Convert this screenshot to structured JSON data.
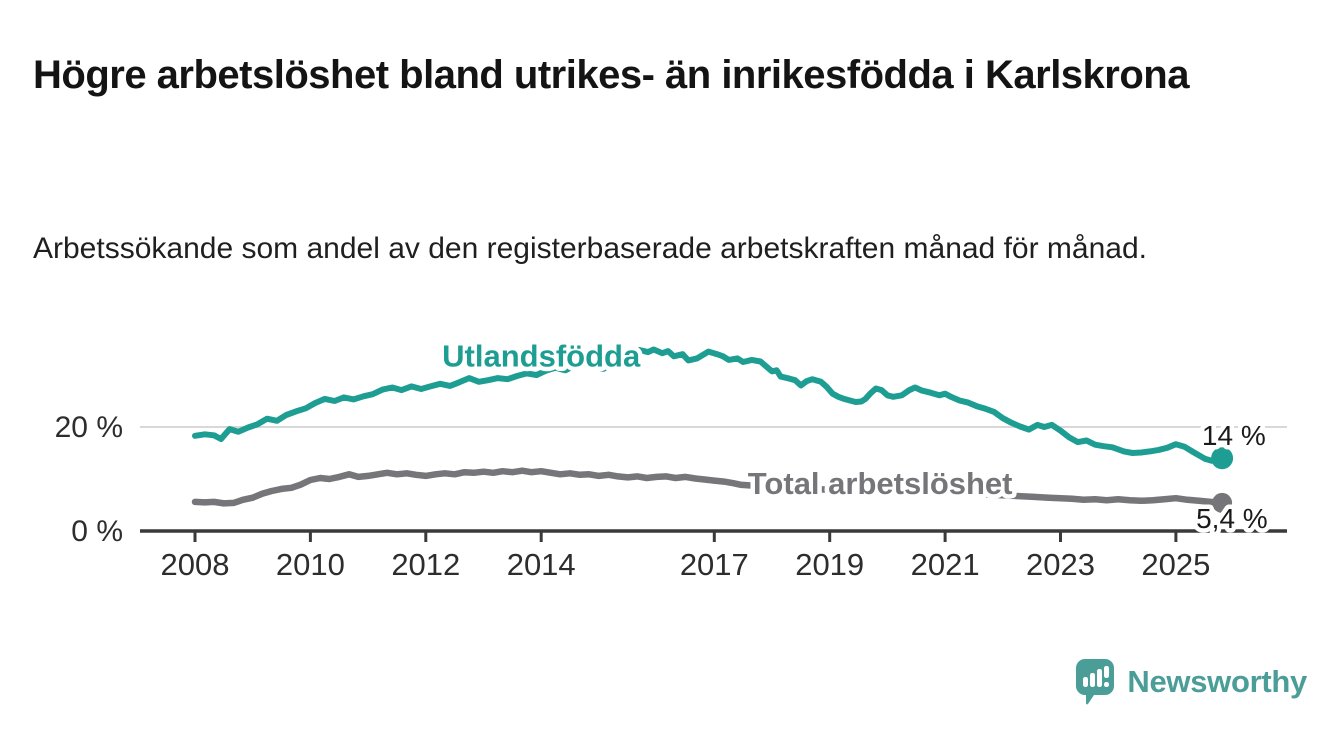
{
  "header": {
    "title": "Högre arbetslöshet bland utrikes- än inrikesfödda i Karlskrona",
    "subtitle": "Arbetssökande som andel av den registerbaserade arbetskraften månad för månad."
  },
  "chart_data": {
    "type": "line",
    "x_axis": {
      "ticks": [
        2008,
        2010,
        2012,
        2014,
        2017,
        2019,
        2021,
        2023,
        2025
      ],
      "range": [
        2007.1,
        2026.9
      ]
    },
    "y_axis": {
      "ticks": [
        {
          "value": 0,
          "label": "0 %"
        },
        {
          "value": 20,
          "label": "20 %"
        }
      ],
      "gridlines": [
        20
      ],
      "range": [
        0,
        38
      ]
    },
    "style": {
      "grid_color": "#d8d8d8",
      "axis_color": "#3a3a3c"
    },
    "series": [
      {
        "name": "Utlandsfödda",
        "color": "#1e9e93",
        "width": 6,
        "dot_r": 11,
        "end_label": "14 %",
        "label_anchor": "middle",
        "label_pos": [
          2014.0,
          31.6
        ],
        "value_label_pos": [
          2025.45,
          16.5
        ],
        "points": [
          [
            2008.0,
            18.3
          ],
          [
            2008.17,
            18.6
          ],
          [
            2008.33,
            18.4
          ],
          [
            2008.45,
            17.7
          ],
          [
            2008.6,
            19.6
          ],
          [
            2008.75,
            19.1
          ],
          [
            2008.92,
            19.9
          ],
          [
            2009.08,
            20.5
          ],
          [
            2009.25,
            21.6
          ],
          [
            2009.42,
            21.2
          ],
          [
            2009.58,
            22.3
          ],
          [
            2009.75,
            23.0
          ],
          [
            2009.92,
            23.6
          ],
          [
            2010.08,
            24.6
          ],
          [
            2010.25,
            25.4
          ],
          [
            2010.42,
            25.0
          ],
          [
            2010.58,
            25.7
          ],
          [
            2010.75,
            25.3
          ],
          [
            2010.92,
            25.9
          ],
          [
            2011.08,
            26.3
          ],
          [
            2011.25,
            27.2
          ],
          [
            2011.42,
            27.6
          ],
          [
            2011.58,
            27.1
          ],
          [
            2011.75,
            27.8
          ],
          [
            2011.92,
            27.3
          ],
          [
            2012.08,
            27.8
          ],
          [
            2012.25,
            28.3
          ],
          [
            2012.42,
            27.9
          ],
          [
            2012.58,
            28.6
          ],
          [
            2012.75,
            29.4
          ],
          [
            2012.92,
            28.7
          ],
          [
            2013.08,
            29.0
          ],
          [
            2013.25,
            29.4
          ],
          [
            2013.42,
            29.2
          ],
          [
            2013.58,
            29.8
          ],
          [
            2013.75,
            30.3
          ],
          [
            2013.92,
            30.0
          ],
          [
            2014.08,
            30.8
          ],
          [
            2014.25,
            31.4
          ],
          [
            2014.42,
            30.9
          ],
          [
            2014.58,
            31.8
          ],
          [
            2014.75,
            32.2
          ],
          [
            2014.92,
            31.6
          ],
          [
            2015.08,
            31.2
          ],
          [
            2015.25,
            32.4
          ],
          [
            2015.42,
            33.4
          ],
          [
            2015.58,
            34.3
          ],
          [
            2015.7,
            34.8
          ],
          [
            2015.85,
            34.4
          ],
          [
            2015.95,
            34.9
          ],
          [
            2016.1,
            34.2
          ],
          [
            2016.2,
            34.6
          ],
          [
            2016.3,
            33.6
          ],
          [
            2016.45,
            34.0
          ],
          [
            2016.55,
            32.8
          ],
          [
            2016.7,
            33.2
          ],
          [
            2016.9,
            34.5
          ],
          [
            2017.05,
            34.0
          ],
          [
            2017.15,
            33.6
          ],
          [
            2017.25,
            32.9
          ],
          [
            2017.4,
            33.2
          ],
          [
            2017.5,
            32.5
          ],
          [
            2017.65,
            32.9
          ],
          [
            2017.8,
            32.6
          ],
          [
            2018.0,
            30.7
          ],
          [
            2018.08,
            30.9
          ],
          [
            2018.15,
            29.7
          ],
          [
            2018.3,
            29.3
          ],
          [
            2018.4,
            29.0
          ],
          [
            2018.5,
            28.0
          ],
          [
            2018.6,
            28.8
          ],
          [
            2018.7,
            29.2
          ],
          [
            2018.85,
            28.7
          ],
          [
            2018.95,
            27.7
          ],
          [
            2019.05,
            26.4
          ],
          [
            2019.15,
            25.8
          ],
          [
            2019.25,
            25.4
          ],
          [
            2019.35,
            25.1
          ],
          [
            2019.45,
            24.8
          ],
          [
            2019.55,
            24.9
          ],
          [
            2019.62,
            25.4
          ],
          [
            2019.7,
            26.4
          ],
          [
            2019.8,
            27.4
          ],
          [
            2019.9,
            27.1
          ],
          [
            2020.0,
            26.1
          ],
          [
            2020.1,
            25.8
          ],
          [
            2020.25,
            26.1
          ],
          [
            2020.38,
            27.1
          ],
          [
            2020.48,
            27.6
          ],
          [
            2020.6,
            27.0
          ],
          [
            2020.75,
            26.6
          ],
          [
            2020.9,
            26.1
          ],
          [
            2021.0,
            26.4
          ],
          [
            2021.1,
            25.8
          ],
          [
            2021.25,
            25.1
          ],
          [
            2021.4,
            24.7
          ],
          [
            2021.55,
            24.0
          ],
          [
            2021.7,
            23.5
          ],
          [
            2021.85,
            22.9
          ],
          [
            2022.0,
            21.7
          ],
          [
            2022.15,
            20.8
          ],
          [
            2022.3,
            20.1
          ],
          [
            2022.45,
            19.5
          ],
          [
            2022.6,
            20.4
          ],
          [
            2022.72,
            20.0
          ],
          [
            2022.85,
            20.4
          ],
          [
            2023.0,
            19.3
          ],
          [
            2023.15,
            18.0
          ],
          [
            2023.3,
            17.1
          ],
          [
            2023.45,
            17.4
          ],
          [
            2023.6,
            16.6
          ],
          [
            2023.75,
            16.3
          ],
          [
            2023.9,
            16.1
          ],
          [
            2024.1,
            15.3
          ],
          [
            2024.25,
            15.0
          ],
          [
            2024.4,
            15.1
          ],
          [
            2024.55,
            15.3
          ],
          [
            2024.7,
            15.6
          ],
          [
            2024.85,
            16.0
          ],
          [
            2025.0,
            16.7
          ],
          [
            2025.15,
            16.2
          ],
          [
            2025.3,
            15.2
          ],
          [
            2025.5,
            13.9
          ],
          [
            2025.62,
            13.5
          ],
          [
            2025.8,
            14.0
          ]
        ]
      },
      {
        "name": "Total arbetslöshet",
        "color": "#76767a",
        "width": 6.5,
        "dot_r": 10,
        "end_label": "5,4 %",
        "label_anchor": "start",
        "label_pos": [
          2017.58,
          7.1
        ],
        "value_label_pos": [
          2025.35,
          0.6
        ],
        "points": [
          [
            2008.0,
            5.6
          ],
          [
            2008.17,
            5.5
          ],
          [
            2008.33,
            5.6
          ],
          [
            2008.5,
            5.3
          ],
          [
            2008.67,
            5.4
          ],
          [
            2008.83,
            6.0
          ],
          [
            2009.0,
            6.4
          ],
          [
            2009.17,
            7.2
          ],
          [
            2009.33,
            7.7
          ],
          [
            2009.5,
            8.1
          ],
          [
            2009.67,
            8.3
          ],
          [
            2009.83,
            8.9
          ],
          [
            2010.0,
            9.8
          ],
          [
            2010.17,
            10.2
          ],
          [
            2010.33,
            10.0
          ],
          [
            2010.5,
            10.4
          ],
          [
            2010.67,
            10.9
          ],
          [
            2010.83,
            10.4
          ],
          [
            2011.0,
            10.6
          ],
          [
            2011.17,
            10.9
          ],
          [
            2011.33,
            11.2
          ],
          [
            2011.5,
            10.9
          ],
          [
            2011.67,
            11.1
          ],
          [
            2011.83,
            10.8
          ],
          [
            2012.0,
            10.6
          ],
          [
            2012.17,
            10.9
          ],
          [
            2012.33,
            11.1
          ],
          [
            2012.5,
            10.9
          ],
          [
            2012.67,
            11.3
          ],
          [
            2012.83,
            11.2
          ],
          [
            2013.0,
            11.4
          ],
          [
            2013.17,
            11.2
          ],
          [
            2013.33,
            11.5
          ],
          [
            2013.5,
            11.3
          ],
          [
            2013.67,
            11.6
          ],
          [
            2013.83,
            11.3
          ],
          [
            2014.0,
            11.5
          ],
          [
            2014.17,
            11.2
          ],
          [
            2014.33,
            10.9
          ],
          [
            2014.5,
            11.1
          ],
          [
            2014.67,
            10.8
          ],
          [
            2014.83,
            10.9
          ],
          [
            2015.0,
            10.6
          ],
          [
            2015.17,
            10.8
          ],
          [
            2015.33,
            10.5
          ],
          [
            2015.5,
            10.3
          ],
          [
            2015.67,
            10.5
          ],
          [
            2015.83,
            10.2
          ],
          [
            2016.0,
            10.4
          ],
          [
            2016.17,
            10.5
          ],
          [
            2016.33,
            10.2
          ],
          [
            2016.5,
            10.4
          ],
          [
            2016.67,
            10.1
          ],
          [
            2016.83,
            9.9
          ],
          [
            2017.0,
            9.7
          ],
          [
            2017.17,
            9.5
          ],
          [
            2017.33,
            9.2
          ],
          [
            2017.45,
            8.9
          ],
          [
            2017.7,
            8.7
          ],
          [
            2018.0,
            8.5
          ],
          [
            2018.3,
            8.3
          ],
          [
            2018.6,
            8.2
          ],
          [
            2019.0,
            7.9
          ],
          [
            2019.4,
            7.7
          ],
          [
            2019.8,
            7.6
          ],
          [
            2020.1,
            7.8
          ],
          [
            2020.4,
            8.0
          ],
          [
            2020.7,
            7.9
          ],
          [
            2021.0,
            7.7
          ],
          [
            2021.4,
            7.3
          ],
          [
            2021.8,
            7.0
          ],
          [
            2022.1,
            6.8
          ],
          [
            2022.5,
            6.6
          ],
          [
            2022.8,
            6.4
          ],
          [
            2023.0,
            6.3
          ],
          [
            2023.2,
            6.2
          ],
          [
            2023.4,
            6.0
          ],
          [
            2023.6,
            6.1
          ],
          [
            2023.8,
            5.9
          ],
          [
            2024.0,
            6.1
          ],
          [
            2024.2,
            5.9
          ],
          [
            2024.4,
            5.8
          ],
          [
            2024.6,
            5.9
          ],
          [
            2024.8,
            6.1
          ],
          [
            2025.0,
            6.3
          ],
          [
            2025.2,
            6.0
          ],
          [
            2025.4,
            5.8
          ],
          [
            2025.6,
            5.6
          ],
          [
            2025.8,
            5.4
          ]
        ]
      }
    ]
  },
  "branding": {
    "name": "Newsworthy",
    "color": "#4a9e97",
    "icon": "speech-bubble-bar-chart"
  }
}
